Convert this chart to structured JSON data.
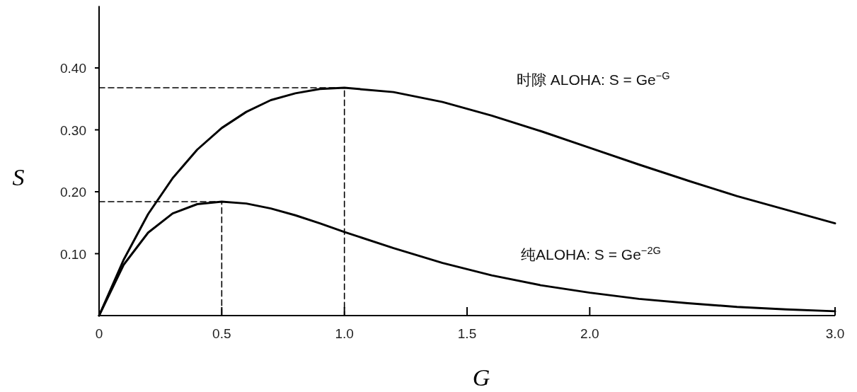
{
  "chart_data": {
    "type": "line",
    "xlabel": "G",
    "ylabel": "S",
    "xlim": [
      0,
      3.0
    ],
    "ylim": [
      0,
      0.5
    ],
    "xticks": [
      {
        "value": 0,
        "label": "0"
      },
      0.5,
      {
        "value": 1,
        "label": "1.0"
      },
      1.5,
      {
        "value": 2,
        "label": "2.0"
      },
      {
        "value": 3,
        "label": "3.0"
      }
    ],
    "yticks": [
      {
        "value": 0.1,
        "label": "0.10"
      },
      {
        "value": 0.2,
        "label": "0.20"
      },
      {
        "value": 0.3,
        "label": "0.30"
      },
      {
        "value": 0.4,
        "label": "0.40"
      }
    ],
    "line_style": "solid",
    "series": [
      {
        "color": "#000000",
        "x": [
          0,
          0.1,
          0.2,
          0.3,
          0.4,
          0.5,
          0.6,
          0.7,
          0.8,
          0.9,
          1.0,
          1.2,
          1.4,
          1.6,
          1.8,
          2.0,
          2.2,
          2.4,
          2.6,
          2.8,
          3.0
        ],
        "values": [
          0,
          0.09,
          0.164,
          0.222,
          0.268,
          0.303,
          0.329,
          0.348,
          0.359,
          0.366,
          0.368,
          0.361,
          0.345,
          0.323,
          0.298,
          0.271,
          0.244,
          0.218,
          0.193,
          0.171,
          0.149
        ]
      },
      {
        "color": "#000000",
        "x": [
          0,
          0.1,
          0.2,
          0.3,
          0.4,
          0.5,
          0.6,
          0.7,
          0.8,
          0.9,
          1.0,
          1.2,
          1.4,
          1.6,
          1.8,
          2.0,
          2.2,
          2.4,
          2.6,
          2.8,
          3.0
        ],
        "values": [
          0,
          0.082,
          0.134,
          0.165,
          0.18,
          0.184,
          0.181,
          0.173,
          0.162,
          0.149,
          0.135,
          0.109,
          0.085,
          0.065,
          0.049,
          0.037,
          0.027,
          0.02,
          0.014,
          0.01,
          0.007
        ]
      },
      {
        "color": "#000000",
        "line_style": "dashed",
        "x": [
          0,
          1,
          1
        ],
        "values": [
          0.368,
          0.368,
          0
        ]
      },
      {
        "color": "#000000",
        "line_style": "dashed",
        "x": [
          0,
          0.5,
          0.5
        ],
        "values": [
          0.184,
          0.184,
          0
        ]
      }
    ],
    "annotations": [
      "时隙 ALOHA: S = Ge$^{−G}$",
      "纯ALOHA: S = Ge$^{−2G}$"
    ]
  }
}
